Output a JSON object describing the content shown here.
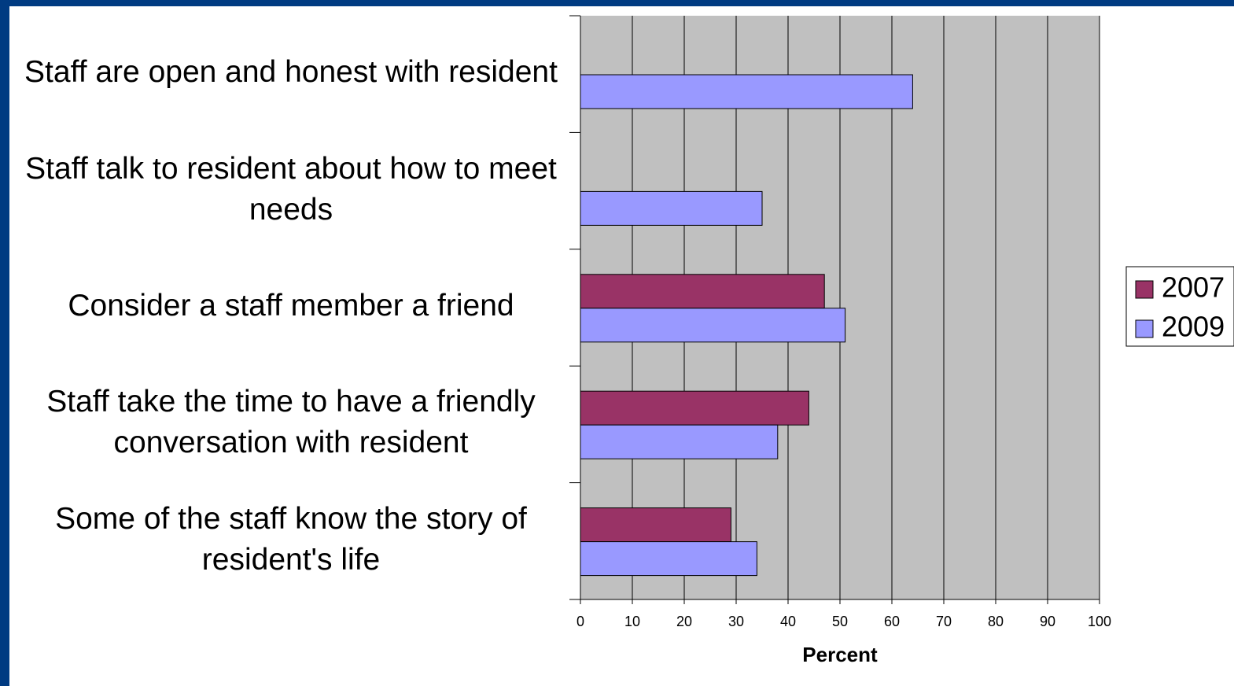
{
  "chart_data": {
    "type": "bar",
    "orientation": "horizontal",
    "x_label": "Percent",
    "categories": [
      "Staff are open and honest with resident",
      "Staff talk to resident about how to meet needs",
      "Consider a staff member a friend",
      "Staff take the time to have a friendly conversation with resident",
      "Some of the staff know the story of resident's life"
    ],
    "series": [
      {
        "name": "2007",
        "color": "#993366",
        "values": [
          null,
          null,
          47,
          44,
          29
        ]
      },
      {
        "name": "2009",
        "color": "#9999ff",
        "values": [
          64,
          35,
          51,
          38,
          34
        ]
      }
    ],
    "xlim": [
      0,
      100
    ],
    "xticks": [
      0,
      10,
      20,
      30,
      40,
      50,
      60,
      70,
      80,
      90,
      100
    ],
    "grid": true,
    "legend": "right"
  }
}
